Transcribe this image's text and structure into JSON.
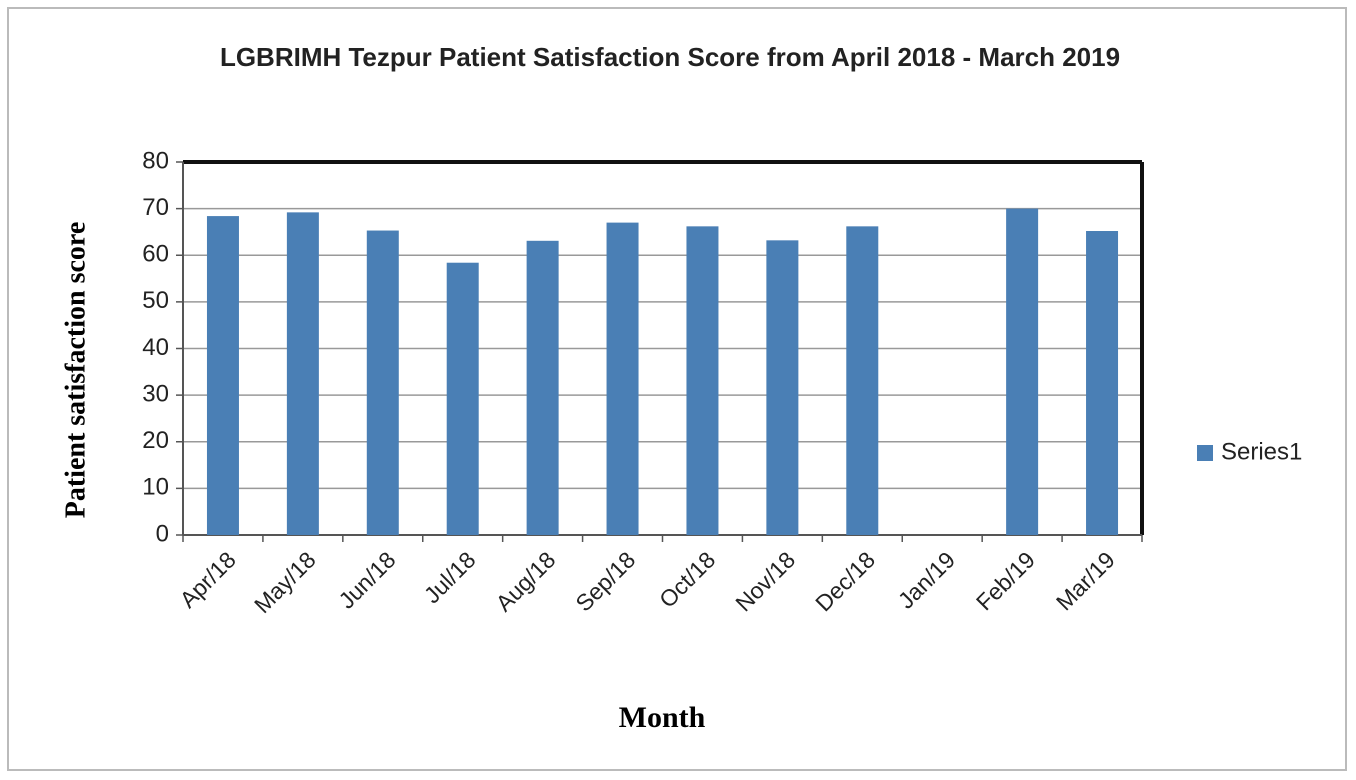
{
  "chart_data": {
    "type": "bar",
    "title": "LGBRIMH Tezpur Patient Satisfaction Score from April 2018 - March 2019",
    "x_label": "Month",
    "y_label": "Patient satisfaction score",
    "categories": [
      "Apr/18",
      "May/18",
      "Jun/18",
      "Jul/18",
      "Aug/18",
      "Sep/18",
      "Oct/18",
      "Nov/18",
      "Dec/18",
      "Jan/19",
      "Feb/19",
      "Mar/19"
    ],
    "series": [
      {
        "name": "Series1",
        "color": "#4a7fb5",
        "values": [
          68.4,
          69.2,
          65.3,
          58.4,
          63.1,
          67,
          66.2,
          63.2,
          66.2,
          null,
          70,
          65.2
        ]
      }
    ],
    "ylim": [
      0,
      80
    ],
    "yticks": [
      0,
      10,
      20,
      30,
      40,
      50,
      60,
      70,
      80
    ],
    "grid": true,
    "legend": "right"
  }
}
